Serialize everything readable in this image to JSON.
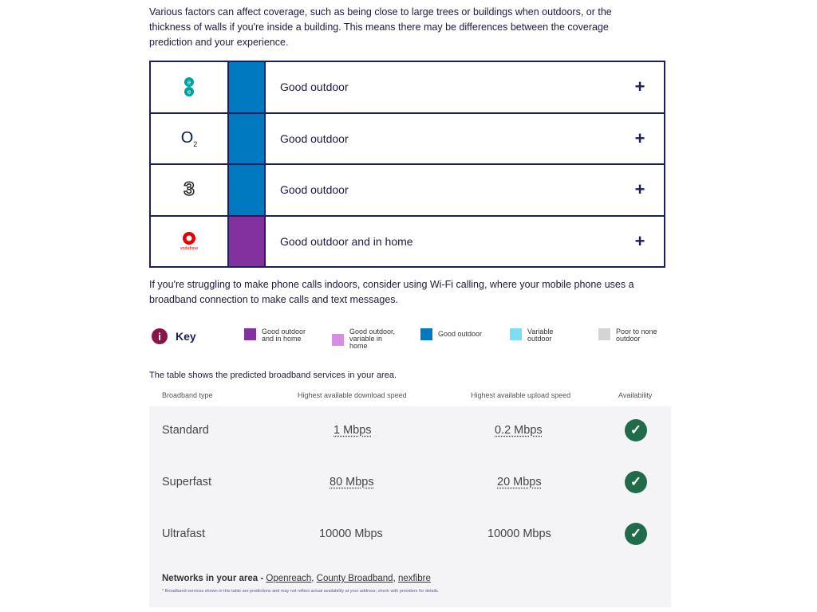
{
  "intro": "Various factors can affect coverage, such as being close to large trees or buildings when outdoors, or the thickness of walls if you're inside a building. This means there may be differences between the coverage prediction and your experience.",
  "coverage": [
    {
      "operator": "EE",
      "label": "Good outdoor",
      "color": "#0079c1"
    },
    {
      "operator": "O2",
      "label": "Good outdoor",
      "color": "#0079c1"
    },
    {
      "operator": "Three",
      "label": "Good outdoor",
      "color": "#0079c1"
    },
    {
      "operator": "Vodafone",
      "label": "Good outdoor and in home",
      "color": "#8431a0"
    }
  ],
  "expand_icon": "+",
  "wifi_text": "If you're struggling to make phone calls indoors, consider using Wi-Fi calling, where your mobile phone uses a broadband connection to make calls and text messages.",
  "key": {
    "title": "Key",
    "info_icon": "i",
    "items": [
      {
        "label": "Good outdoor and in home",
        "color": "#8431a0"
      },
      {
        "label": "Good outdoor, variable in home",
        "color": "#d98ce6"
      },
      {
        "label": "Good outdoor",
        "color": "#0079c1"
      },
      {
        "label": "Variable outdoor",
        "color": "#7fdcf7"
      },
      {
        "label": "Poor to none outdoor",
        "color": "#d4d4d6"
      }
    ]
  },
  "broadband": {
    "intro": "The table shows the predicted broadband services in your area.",
    "headers": [
      "Broadband type",
      "Highest available download speed",
      "Highest available upload speed",
      "Availability"
    ],
    "rows": [
      {
        "type": "Standard",
        "down": "1 Mbps",
        "up": "0.2 Mbps"
      },
      {
        "type": "Superfast",
        "down": "80 Mbps",
        "up": "20 Mbps"
      },
      {
        "type": "Ultrafast",
        "down": "10000 Mbps",
        "up": "10000 Mbps"
      }
    ],
    "check_icon": "✓",
    "networks_label": "Networks in your area - ",
    "networks": [
      "Openreach",
      "County Broadband",
      "nexfibre"
    ],
    "footnote": "* Broadband services shown in this table are predictions and may not reflect actual availability at your address; check with providers for details."
  }
}
